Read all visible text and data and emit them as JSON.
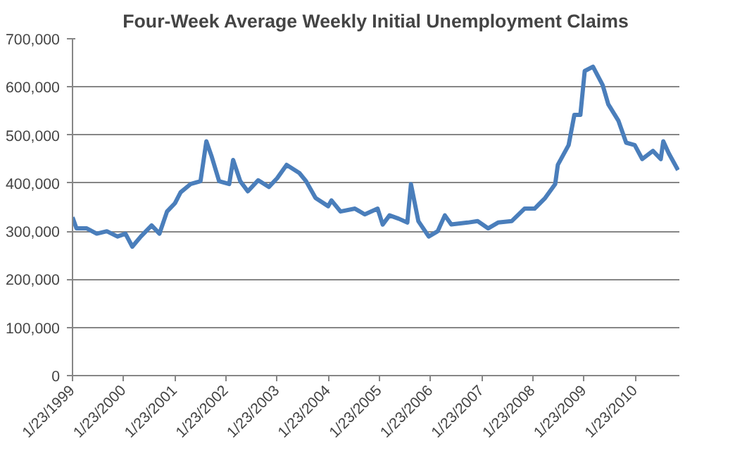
{
  "chart_data": {
    "type": "line",
    "title": "Four-Week Average Weekly Initial Unemployment Claims",
    "x": [
      "1999-01-23",
      "1999-02-20",
      "1999-05-05",
      "1999-07-15",
      "1999-09-25",
      "1999-12-10",
      "2000-02-05",
      "2000-03-25",
      "2000-05-25",
      "2000-08-10",
      "2000-10-05",
      "2000-11-28",
      "2001-01-23",
      "2001-03-05",
      "2001-05-15",
      "2001-07-25",
      "2001-09-05",
      "2001-10-12",
      "2001-12-05",
      "2002-02-15",
      "2002-03-15",
      "2002-05-05",
      "2002-06-28",
      "2002-09-10",
      "2002-11-25",
      "2003-01-23",
      "2003-04-01",
      "2003-07-01",
      "2003-08-18",
      "2003-10-25",
      "2004-01-23",
      "2004-02-15",
      "2004-04-20",
      "2004-08-01",
      "2004-10-10",
      "2005-01-10",
      "2005-02-15",
      "2005-04-05",
      "2005-06-10",
      "2005-08-10",
      "2005-09-05",
      "2005-10-28",
      "2006-01-10",
      "2006-03-15",
      "2006-05-05",
      "2006-06-20",
      "2006-10-15",
      "2006-12-25",
      "2007-03-10",
      "2007-05-20",
      "2007-08-25",
      "2007-11-25",
      "2008-02-05",
      "2008-04-20",
      "2008-07-01",
      "2008-07-20",
      "2008-10-05",
      "2008-11-15",
      "2008-12-28",
      "2009-01-28",
      "2009-03-28",
      "2009-06-05",
      "2009-07-15",
      "2009-09-25",
      "2009-11-20",
      "2010-01-20",
      "2010-03-15",
      "2010-05-30",
      "2010-07-25",
      "2010-08-12",
      "2010-09-20",
      "2010-11-25"
    ],
    "series": [
      {
        "color": "#4a7ebb",
        "values": [
          329000,
          306000,
          306000,
          295000,
          300000,
          289000,
          295000,
          268000,
          289000,
          312000,
          295000,
          341000,
          358000,
          381000,
          398000,
          404000,
          487000,
          456000,
          404000,
          398000,
          448000,
          404000,
          383000,
          406000,
          392000,
          410000,
          438000,
          421000,
          404000,
          369000,
          352000,
          364000,
          341000,
          347000,
          335000,
          347000,
          314000,
          333000,
          326000,
          318000,
          398000,
          321000,
          289000,
          300000,
          333000,
          314000,
          318000,
          321000,
          306000,
          318000,
          321000,
          347000,
          347000,
          369000,
          398000,
          438000,
          479000,
          542000,
          542000,
          633000,
          642000,
          604000,
          564000,
          530000,
          484000,
          479000,
          450000,
          467000,
          450000,
          487000,
          462000,
          427000
        ]
      }
    ],
    "xlim": [
      "1999-01-23",
      "2010-12-05"
    ],
    "xticks": [
      {
        "value": "1999-01-23",
        "label": "1/23/1999"
      },
      {
        "value": "2000-01-23",
        "label": "1/23/2000"
      },
      {
        "value": "2001-01-23",
        "label": "1/23/2001"
      },
      {
        "value": "2002-01-23",
        "label": "1/23/2002"
      },
      {
        "value": "2003-01-23",
        "label": "1/23/2003"
      },
      {
        "value": "2004-01-23",
        "label": "1/23/2004"
      },
      {
        "value": "2005-01-23",
        "label": "1/23/2005"
      },
      {
        "value": "2006-01-23",
        "label": "1/23/2006"
      },
      {
        "value": "2007-01-23",
        "label": "1/23/2007"
      },
      {
        "value": "2008-01-23",
        "label": "1/23/2008"
      },
      {
        "value": "2009-01-23",
        "label": "1/23/2009"
      },
      {
        "value": "2010-01-23",
        "label": "1/23/2010"
      }
    ],
    "ylim": [
      0,
      700000
    ],
    "yticks": [
      {
        "value": 0,
        "label": "0"
      },
      {
        "value": 100000,
        "label": "100,000"
      },
      {
        "value": 200000,
        "label": "200,000"
      },
      {
        "value": 300000,
        "label": "300,000"
      },
      {
        "value": 400000,
        "label": "400,000"
      },
      {
        "value": 500000,
        "label": "500,000"
      },
      {
        "value": 600000,
        "label": "600,000"
      },
      {
        "value": 700000,
        "label": "700,000"
      }
    ],
    "grid": "y",
    "marker": "none",
    "line_style": "solid"
  }
}
